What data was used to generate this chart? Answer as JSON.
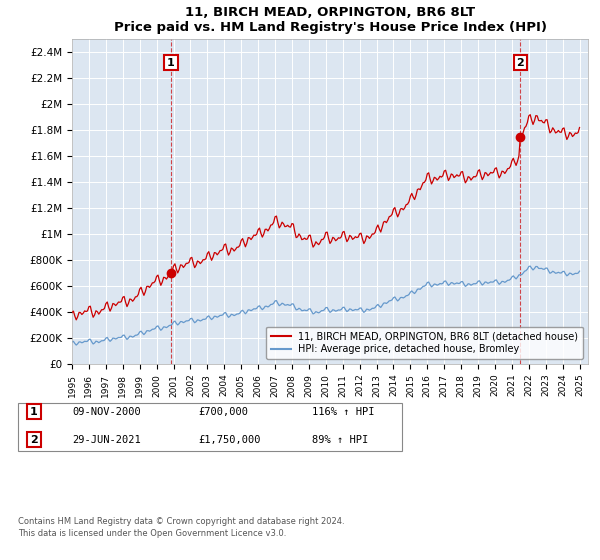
{
  "title": "11, BIRCH MEAD, ORPINGTON, BR6 8LT",
  "subtitle": "Price paid vs. HM Land Registry's House Price Index (HPI)",
  "ylim": [
    0,
    2500000
  ],
  "yticks": [
    0,
    200000,
    400000,
    600000,
    800000,
    1000000,
    1200000,
    1400000,
    1600000,
    1800000,
    2000000,
    2200000,
    2400000
  ],
  "ytick_labels": [
    "£0",
    "£200K",
    "£400K",
    "£600K",
    "£800K",
    "£1M",
    "£1.2M",
    "£1.4M",
    "£1.6M",
    "£1.8M",
    "£2M",
    "£2.2M",
    "£2.4M"
  ],
  "background_color": "#dce6f1",
  "red_color": "#cc0000",
  "blue_color": "#6699cc",
  "legend_label_red": "11, BIRCH MEAD, ORPINGTON, BR6 8LT (detached house)",
  "legend_label_blue": "HPI: Average price, detached house, Bromley",
  "sale1_year": 2000.854,
  "sale1_price": 700000,
  "sale2_year": 2021.493,
  "sale2_price": 1750000,
  "xmin": 1995.0,
  "xmax": 2025.5,
  "footer": "Contains HM Land Registry data © Crown copyright and database right 2024.\nThis data is licensed under the Open Government Licence v3.0."
}
